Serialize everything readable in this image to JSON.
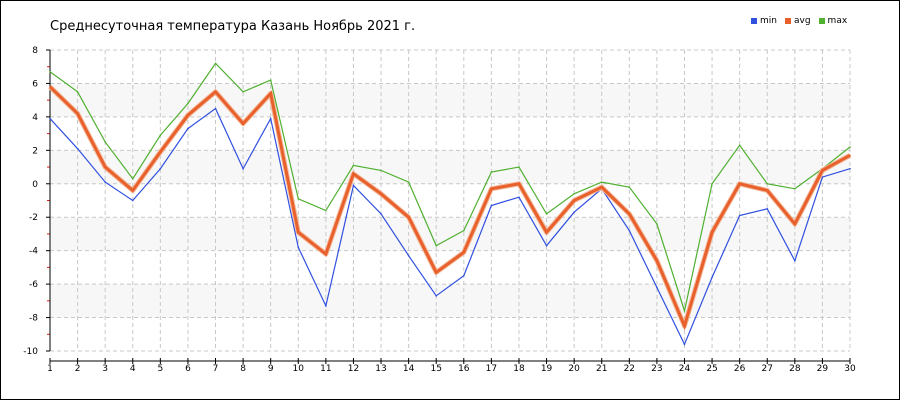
{
  "chart_data": {
    "type": "line",
    "title": "Среднесуточная температура Казань  Ноябрь 2021 г.",
    "xlabel": "",
    "ylabel": "",
    "x": [
      1,
      2,
      3,
      4,
      5,
      6,
      7,
      8,
      9,
      10,
      11,
      12,
      13,
      14,
      15,
      16,
      17,
      18,
      19,
      20,
      21,
      22,
      23,
      24,
      25,
      26,
      27,
      28,
      29,
      30
    ],
    "ylim": [
      -10,
      8
    ],
    "yticks": [
      8,
      6,
      4,
      2,
      0,
      -2,
      -4,
      -6,
      -8,
      -10
    ],
    "grid": true,
    "legend": "top-right",
    "series": [
      {
        "name": "min",
        "color": "#3050e0",
        "values": [
          3.9,
          2.1,
          0.1,
          -1.0,
          0.9,
          3.3,
          4.5,
          0.9,
          3.9,
          -3.8,
          -7.3,
          -0.1,
          -1.8,
          -4.3,
          -6.7,
          -5.5,
          -1.3,
          -0.8,
          -3.7,
          -1.7,
          -0.3,
          -2.8,
          -6.2,
          -9.6,
          -5.6,
          -1.9,
          -1.5,
          -4.6,
          0.4,
          0.9
        ]
      },
      {
        "name": "avg",
        "color": "#e8602c",
        "values": [
          5.8,
          4.2,
          1.0,
          -0.4,
          1.9,
          4.1,
          5.5,
          3.6,
          5.4,
          -2.9,
          -4.2,
          0.6,
          -0.6,
          -2.0,
          -5.3,
          -4.1,
          -0.3,
          0.0,
          -2.9,
          -1.0,
          -0.2,
          -1.8,
          -4.6,
          -8.5,
          -2.9,
          0.0,
          -0.4,
          -2.4,
          0.8,
          1.7
        ]
      },
      {
        "name": "max",
        "color": "#50b030",
        "values": [
          6.7,
          5.5,
          2.5,
          0.3,
          2.9,
          4.8,
          7.2,
          5.5,
          6.2,
          -0.9,
          -1.6,
          1.1,
          0.8,
          0.1,
          -3.7,
          -2.8,
          0.7,
          1.0,
          -1.8,
          -0.6,
          0.1,
          -0.2,
          -2.4,
          -7.6,
          0.0,
          2.3,
          0.0,
          -0.3,
          0.9,
          2.2
        ]
      }
    ]
  }
}
